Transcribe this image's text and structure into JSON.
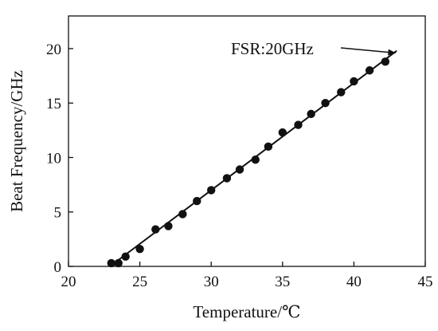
{
  "chart_data": {
    "type": "scatter",
    "xlabel": "Temperature/℃",
    "ylabel": "Beat Frequency/GHz",
    "xlim": [
      20,
      45
    ],
    "ylim": [
      0,
      23
    ],
    "xticks": [
      20,
      25,
      30,
      35,
      40,
      45
    ],
    "yticks": [
      0,
      5,
      10,
      15,
      20
    ],
    "grid": false,
    "series": [
      {
        "points": [
          {
            "x": 23.0,
            "y": 0.3
          },
          {
            "x": 23.5,
            "y": 0.3
          },
          {
            "x": 24.0,
            "y": 0.9
          },
          {
            "x": 25.0,
            "y": 1.6
          },
          {
            "x": 26.1,
            "y": 3.4
          },
          {
            "x": 27.0,
            "y": 3.7
          },
          {
            "x": 28.0,
            "y": 4.8
          },
          {
            "x": 29.0,
            "y": 6.0
          },
          {
            "x": 30.0,
            "y": 7.0
          },
          {
            "x": 31.1,
            "y": 8.1
          },
          {
            "x": 32.0,
            "y": 8.9
          },
          {
            "x": 33.1,
            "y": 9.8
          },
          {
            "x": 34.0,
            "y": 11.0
          },
          {
            "x": 35.0,
            "y": 12.3
          },
          {
            "x": 36.1,
            "y": 13.0
          },
          {
            "x": 37.0,
            "y": 14.0
          },
          {
            "x": 38.0,
            "y": 15.0
          },
          {
            "x": 39.1,
            "y": 16.0
          },
          {
            "x": 40.0,
            "y": 17.0
          },
          {
            "x": 41.1,
            "y": 18.0
          },
          {
            "x": 42.2,
            "y": 18.8
          }
        ],
        "color": "#111111"
      }
    ],
    "fit_line": {
      "x": [
        22.9,
        43.0
      ],
      "y": [
        0.0,
        19.8
      ],
      "color": "#111111"
    },
    "annotation": {
      "text": "FSR:20GHz",
      "arrow_to": {
        "x": 42.9,
        "y": 19.6
      }
    }
  }
}
